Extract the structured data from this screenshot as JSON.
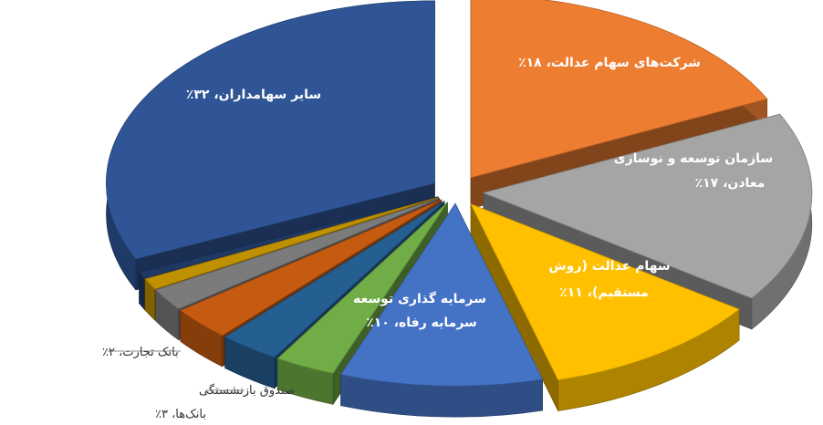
{
  "chart_data": {
    "type": "pie",
    "style": "3d-exploded",
    "grid": false,
    "slices": [
      {
        "label": "شرکت‌های سهام عدالت، ۱۸٪",
        "value": 18,
        "color": "#ED7D31"
      },
      {
        "label": "سازمان توسعه و نوسازی معادن، ۱۷٪",
        "value": 17,
        "color": "#A5A5A5"
      },
      {
        "label": "سهام عدالت (روش مستقیم)، ۱۱٪",
        "value": 11,
        "color": "#FFC000"
      },
      {
        "label": "سرمایه گذاری توسعه سرمایه رفاه، ۱۰٪",
        "value": 10,
        "color": "#4472C4"
      },
      {
        "label": "",
        "value": 3,
        "color": "#70AD47"
      },
      {
        "label": "",
        "value": 3,
        "color": "#255E91"
      },
      {
        "label": "صندوق بازنشستگی بانک‌ها، ۳٪",
        "value": 3,
        "color": "#C55A11"
      },
      {
        "label": "بانک تجارت، ۲٪",
        "value": 2,
        "color": "#7B7B7B"
      },
      {
        "label": "",
        "value": 1,
        "color": "#BF9000"
      },
      {
        "label": "",
        "value": 0,
        "color": "#1F3864"
      },
      {
        "label": "سایر سهامداران، ۳۲٪",
        "value": 32,
        "color": "#2F5597"
      }
    ]
  }
}
